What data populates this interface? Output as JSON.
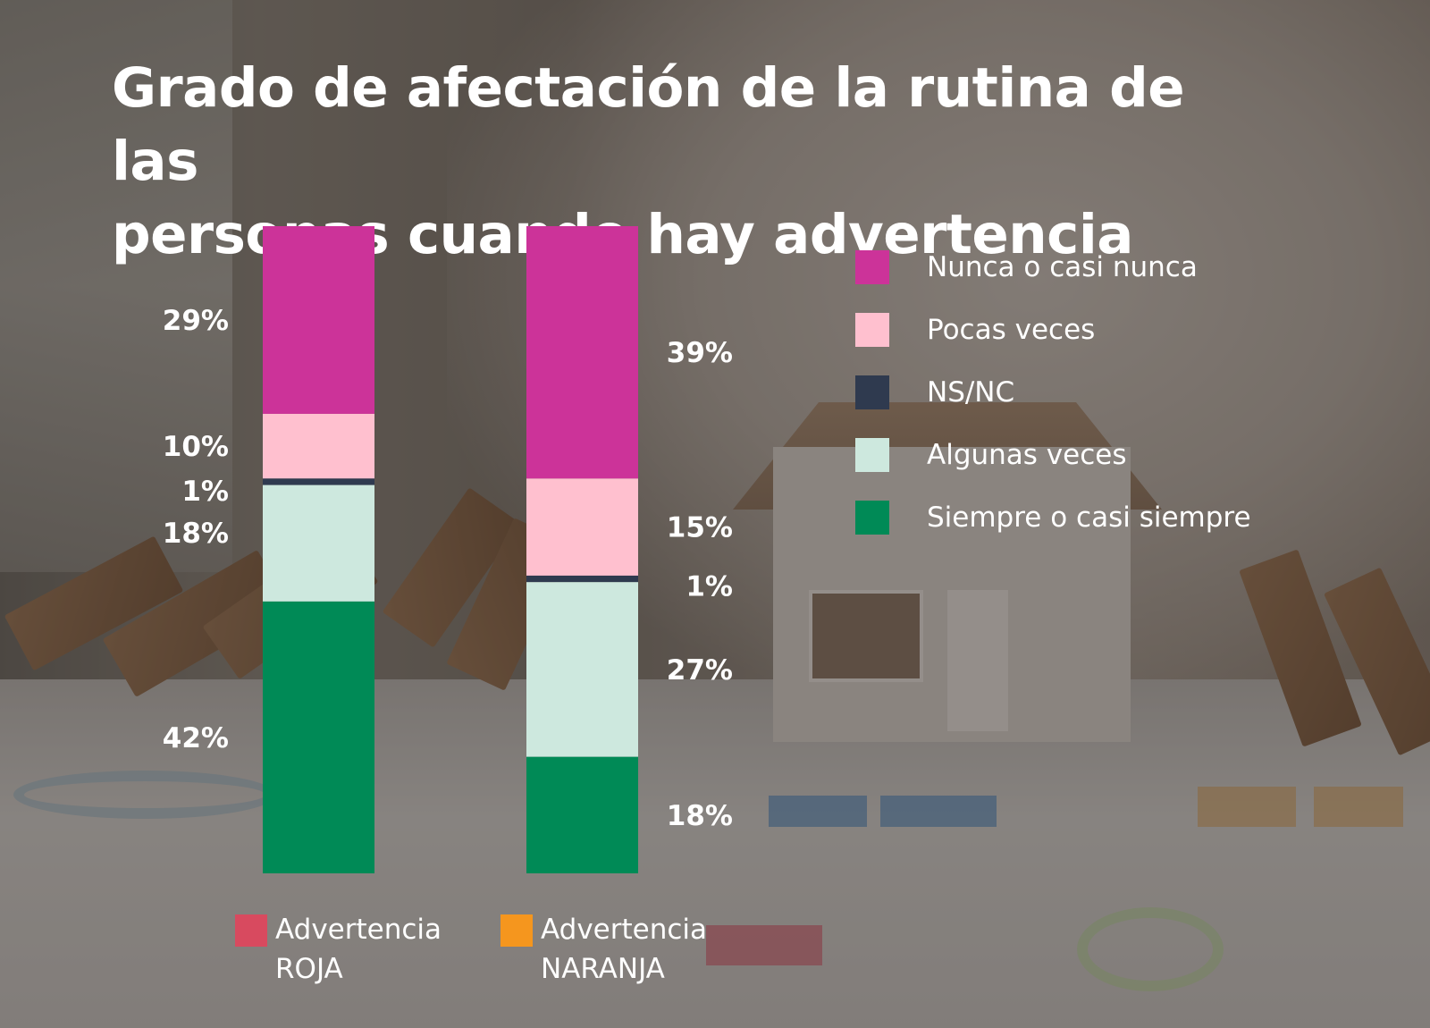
{
  "title_lines": [
    "Grado de afectación de la rutina de las",
    "personas cuando hay advertencia"
  ],
  "chart_data": {
    "type": "bar",
    "stacked": true,
    "title": "Grado de afectación de la rutina de las personas cuando hay advertencia",
    "categories": [
      "Advertencia ROJA",
      "Advertencia NARANJA"
    ],
    "series": [
      {
        "name": "Nunca o casi nunca",
        "color": "#cc3399",
        "values": [
          29,
          39
        ],
        "labels": [
          "29%",
          "39%"
        ]
      },
      {
        "name": "Pocas veces",
        "color": "#ffc0cf",
        "values": [
          10,
          15
        ],
        "labels": [
          "10%",
          "15%"
        ]
      },
      {
        "name": "NS/NC",
        "color": "#2f3a4f",
        "values": [
          1,
          1
        ],
        "labels": [
          "1%",
          "1%"
        ]
      },
      {
        "name": "Algunas veces",
        "color": "#cde8de",
        "values": [
          18,
          27
        ],
        "labels": [
          "18%",
          "27%"
        ]
      },
      {
        "name": "Siempre o casi siempre",
        "color": "#008a56",
        "values": [
          42,
          18
        ],
        "labels": [
          "42%",
          "18%"
        ]
      }
    ],
    "ylim": [
      0,
      100
    ],
    "grid": false,
    "legend_position": "right"
  },
  "bar_legend": [
    {
      "line1": "Advertencia",
      "line2": "ROJA",
      "color": "#d84a5f"
    },
    {
      "line1": "Advertencia",
      "line2": "NARANJA",
      "color": "#f5961e"
    }
  ]
}
